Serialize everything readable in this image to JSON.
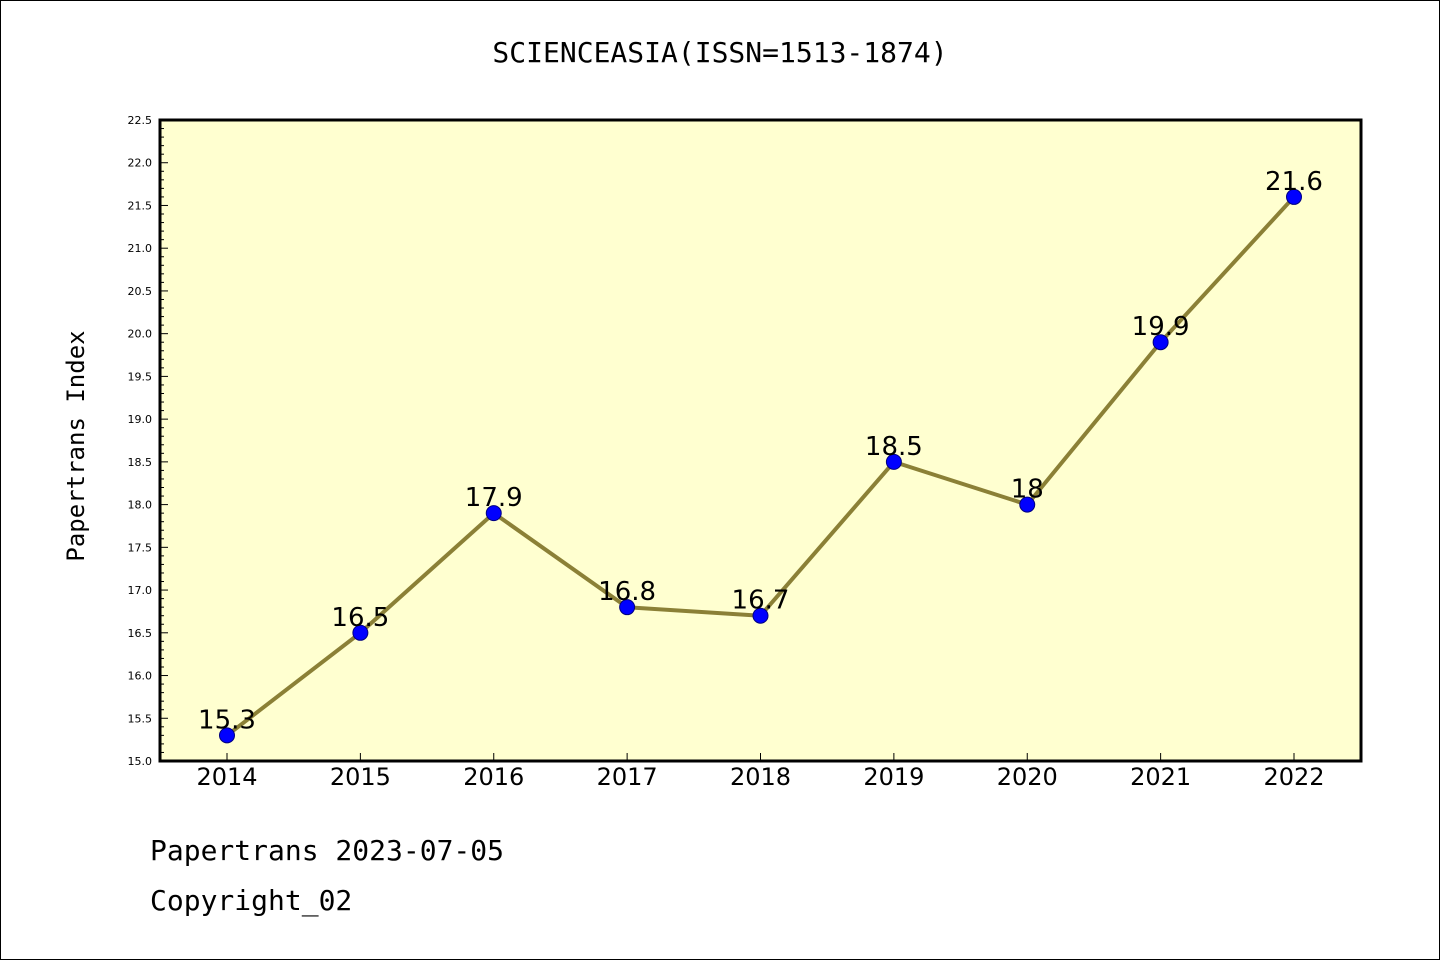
{
  "chart_data": {
    "type": "line",
    "title": "SCIENCEASIA(ISSN=1513-1874)",
    "xlabel": "",
    "ylabel": "Papertrans Index",
    "categories": [
      "2014",
      "2015",
      "2016",
      "2017",
      "2018",
      "2019",
      "2020",
      "2021",
      "2022"
    ],
    "series": [
      {
        "values": [
          15.3,
          16.5,
          17.9,
          16.8,
          16.7,
          18.5,
          18.0,
          19.9,
          21.6
        ],
        "labels": [
          "15.3",
          "16.5",
          "17.9",
          "16.8",
          "16.7",
          "18.5",
          "18",
          "19.9",
          "21.6"
        ]
      }
    ],
    "ylim": [
      15.0,
      22.5
    ],
    "yticks": [
      "15.0",
      "15.5",
      "16.0",
      "16.5",
      "17.0",
      "17.5",
      "18.0",
      "18.5",
      "19.0",
      "19.5",
      "20.0",
      "20.5",
      "21.0",
      "21.5",
      "22.0",
      "22.5"
    ],
    "grid": false,
    "colors": {
      "plot_background": "#ffffd0",
      "line": "#8b8036",
      "marker": "#0000ff",
      "marker_edge": "#000080"
    }
  },
  "footer": {
    "date_text": "Papertrans 2023-07-05",
    "copyright_text": "Copyright_02"
  }
}
